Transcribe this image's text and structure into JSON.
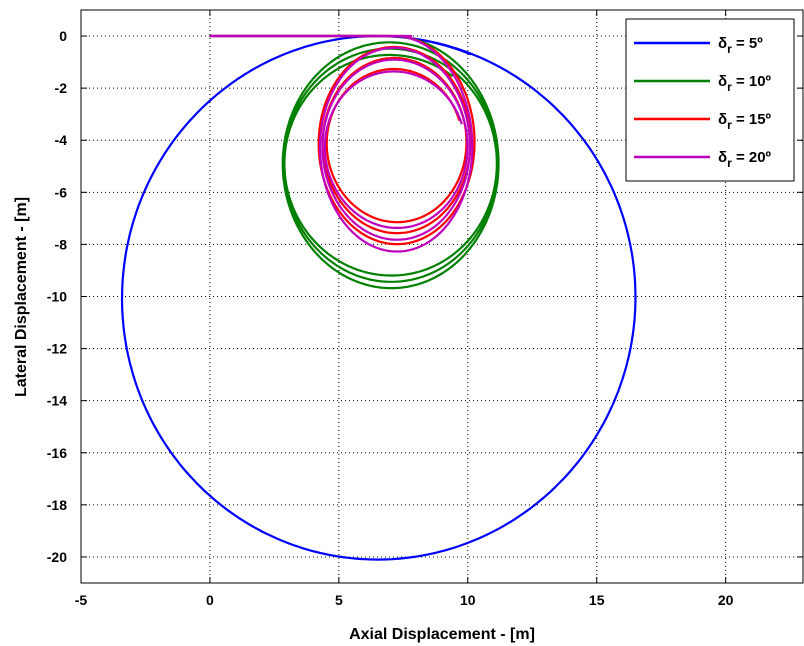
{
  "chart_data": {
    "type": "line",
    "xlabel": "Axial Displacement - [m]",
    "ylabel": "Lateral Displacement - [m]",
    "xlim": [
      -5,
      23
    ],
    "ylim": [
      -21,
      1
    ],
    "xticks": [
      -5,
      0,
      5,
      10,
      15,
      20
    ],
    "yticks": [
      0,
      -2,
      -4,
      -6,
      -8,
      -10,
      -12,
      -14,
      -16,
      -18,
      -20
    ],
    "grid": true,
    "legend_position": "top-right",
    "series": [
      {
        "name": "δr = 5º",
        "legend": {
          "symbol": "δ",
          "subscript": "r",
          "value": " = 5º"
        },
        "color": "#0000ff",
        "path": {
          "straight_x": [
            0,
            5.0
          ],
          "straight_y": 0,
          "center": [
            6.5,
            -10.05
          ],
          "radii_start": [
            10.05,
            10.05
          ],
          "radii_end": [
            9.85,
            10.05
          ],
          "turns": 1.06
        }
      },
      {
        "name": "δr = 10º",
        "legend": {
          "symbol": "δ",
          "subscript": "r",
          "value": " = 10º"
        },
        "color": "#008000",
        "path": {
          "straight_x": [
            0,
            7.0
          ],
          "straight_y": 0,
          "center": [
            7.0,
            -4.9
          ],
          "radii_start": [
            4.2,
            4.9
          ],
          "radii_end": [
            4.1,
            4.15
          ],
          "turns": 3.1
        }
      },
      {
        "name": "δr = 15º",
        "legend": {
          "symbol": "δ",
          "subscript": "r",
          "value": " = 15º"
        },
        "color": "#ff0000",
        "path": {
          "straight_x": [
            0,
            7.5
          ],
          "straight_y": 0,
          "center": [
            7.2,
            -4.1
          ],
          "radii_start": [
            3.1,
            4.1
          ],
          "radii_end": [
            2.6,
            2.75
          ],
          "turns": 3.2
        }
      },
      {
        "name": "δr = 20º",
        "legend": {
          "symbol": "δ",
          "subscript": "r",
          "value": " = 20º"
        },
        "color": "#bf00bf",
        "path": {
          "straight_x": [
            0,
            7.8
          ],
          "straight_y": 0,
          "center": [
            7.2,
            -4.25
          ],
          "radii_start": [
            3.0,
            4.25
          ],
          "radii_end": [
            2.7,
            2.8
          ],
          "turns": 3.2
        }
      }
    ]
  }
}
